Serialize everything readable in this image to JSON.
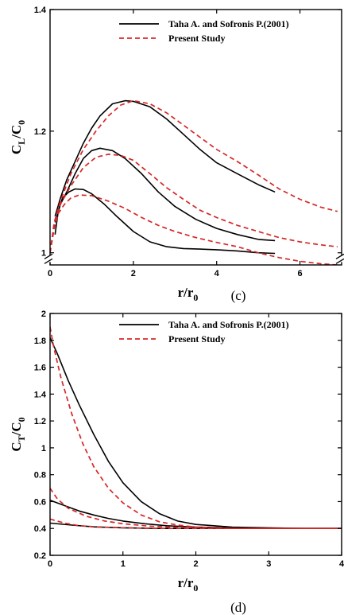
{
  "chart_data": [
    {
      "type": "line",
      "panel_label": "(c)",
      "xlabel_main": "r/r",
      "xlabel_sub": "0",
      "ylabel_main": "C",
      "ylabel_sub": "L",
      "ylabel_tail": "/C",
      "ylabel_tail_sub": "0",
      "xlim": [
        0,
        7
      ],
      "ylim": [
        0.98,
        1.4
      ],
      "axis_break_y": 0.99,
      "xticks": [
        0,
        2,
        4,
        6
      ],
      "yticks": [
        1,
        1.2,
        1.4
      ],
      "grid": false,
      "legend_position": "top-right",
      "legend": [
        {
          "label": "Taha A. and Sofronis P.(2001)",
          "style": "solid",
          "color": "#000000"
        },
        {
          "label": "Present Study",
          "style": "dashed",
          "color": "#d62728"
        }
      ],
      "series": [
        {
          "group": "Taha A. and Sofronis P.(2001)",
          "style": "solid",
          "color": "#000000",
          "x": [
            0.12,
            0.2,
            0.3,
            0.45,
            0.6,
            0.8,
            1.0,
            1.3,
            1.6,
            2.0,
            2.4,
            2.8,
            3.2,
            3.6,
            4.0,
            4.5,
            5.0,
            5.4
          ],
          "y": [
            1.03,
            1.07,
            1.09,
            1.1,
            1.105,
            1.104,
            1.097,
            1.08,
            1.06,
            1.035,
            1.018,
            1.01,
            1.007,
            1.006,
            1.005,
            1.003,
            1.0,
            0.999
          ]
        },
        {
          "group": "Taha A. and Sofronis P.(2001)",
          "style": "solid",
          "color": "#000000",
          "x": [
            0.12,
            0.25,
            0.4,
            0.6,
            0.8,
            1.0,
            1.2,
            1.5,
            1.8,
            2.2,
            2.6,
            3.0,
            3.5,
            4.0,
            4.5,
            5.0,
            5.4
          ],
          "y": [
            1.05,
            1.08,
            1.1,
            1.13,
            1.155,
            1.168,
            1.172,
            1.168,
            1.155,
            1.13,
            1.1,
            1.076,
            1.055,
            1.04,
            1.03,
            1.022,
            1.02
          ]
        },
        {
          "group": "Taha A. and Sofronis P.(2001)",
          "style": "solid",
          "color": "#000000",
          "x": [
            0.12,
            0.25,
            0.4,
            0.6,
            0.8,
            1.0,
            1.2,
            1.5,
            1.8,
            2.0,
            2.4,
            2.8,
            3.2,
            3.6,
            4.0,
            4.5,
            5.0,
            5.4
          ],
          "y": [
            1.06,
            1.09,
            1.12,
            1.15,
            1.18,
            1.205,
            1.225,
            1.245,
            1.25,
            1.249,
            1.24,
            1.22,
            1.195,
            1.17,
            1.148,
            1.13,
            1.112,
            1.1
          ]
        },
        {
          "group": "Present Study",
          "style": "dashed",
          "color": "#d62728",
          "x": [
            0.0,
            0.1,
            0.2,
            0.35,
            0.5,
            0.7,
            1.0,
            1.4,
            1.8,
            2.2,
            2.6,
            3.0,
            3.5,
            4.0,
            4.5,
            5.0,
            5.5,
            6.0,
            6.5,
            6.9
          ],
          "y": [
            1.0,
            1.04,
            1.065,
            1.08,
            1.09,
            1.095,
            1.094,
            1.085,
            1.073,
            1.058,
            1.045,
            1.035,
            1.025,
            1.017,
            1.01,
            1.0,
            0.992,
            0.986,
            0.982,
            0.98
          ]
        },
        {
          "group": "Present Study",
          "style": "dashed",
          "color": "#d62728",
          "x": [
            0.0,
            0.1,
            0.25,
            0.5,
            0.8,
            1.1,
            1.4,
            1.7,
            2.0,
            2.4,
            2.8,
            3.2,
            3.6,
            4.0,
            4.5,
            5.0,
            5.5,
            6.0,
            6.5,
            6.9
          ],
          "y": [
            1.0,
            1.045,
            1.08,
            1.11,
            1.14,
            1.157,
            1.162,
            1.16,
            1.152,
            1.13,
            1.107,
            1.088,
            1.07,
            1.058,
            1.045,
            1.035,
            1.025,
            1.018,
            1.013,
            1.01
          ]
        },
        {
          "group": "Present Study",
          "style": "dashed",
          "color": "#d62728",
          "x": [
            0.0,
            0.1,
            0.25,
            0.5,
            0.8,
            1.1,
            1.4,
            1.7,
            2.0,
            2.4,
            2.8,
            3.2,
            3.6,
            4.0,
            4.5,
            5.0,
            5.5,
            6.0,
            6.5,
            6.9
          ],
          "y": [
            1.0,
            1.05,
            1.085,
            1.13,
            1.17,
            1.2,
            1.225,
            1.243,
            1.25,
            1.245,
            1.23,
            1.21,
            1.19,
            1.17,
            1.15,
            1.128,
            1.105,
            1.088,
            1.075,
            1.068
          ]
        }
      ]
    },
    {
      "type": "line",
      "panel_label": "(d)",
      "xlabel_main": "r/r",
      "xlabel_sub": "0",
      "ylabel_main": "C",
      "ylabel_sub": "T",
      "ylabel_tail": "/C",
      "ylabel_tail_sub": "0",
      "xlim": [
        0,
        4
      ],
      "ylim": [
        0.2,
        2.0
      ],
      "xticks": [
        0,
        1,
        2,
        3,
        4
      ],
      "yticks": [
        0.2,
        0.4,
        0.6,
        0.8,
        1,
        1.2,
        1.4,
        1.6,
        1.8,
        2
      ],
      "grid": false,
      "legend_position": "top-right",
      "legend": [
        {
          "label": "Taha A. and Sofronis P.(2001)",
          "style": "solid",
          "color": "#000000"
        },
        {
          "label": "Present Study",
          "style": "dashed",
          "color": "#d62728"
        }
      ],
      "series": [
        {
          "group": "Taha A. and Sofronis P.(2001)",
          "style": "solid",
          "color": "#000000",
          "x": [
            0.0,
            0.1,
            0.25,
            0.4,
            0.6,
            0.8,
            1.0,
            1.25,
            1.5,
            1.75,
            2.0,
            2.5,
            3.0,
            3.5,
            4.0
          ],
          "y": [
            1.82,
            1.7,
            1.5,
            1.32,
            1.1,
            0.9,
            0.74,
            0.6,
            0.51,
            0.455,
            0.43,
            0.41,
            0.405,
            0.4,
            0.4
          ]
        },
        {
          "group": "Taha A. and Sofronis P.(2001)",
          "style": "solid",
          "color": "#000000",
          "x": [
            0.0,
            0.2,
            0.4,
            0.6,
            0.8,
            1.0,
            1.3,
            1.6,
            2.0,
            2.5,
            3.0,
            3.5,
            4.0
          ],
          "y": [
            0.61,
            0.57,
            0.53,
            0.5,
            0.475,
            0.455,
            0.435,
            0.42,
            0.41,
            0.405,
            0.4,
            0.4,
            0.4
          ]
        },
        {
          "group": "Taha A. and Sofronis P.(2001)",
          "style": "solid",
          "color": "#000000",
          "x": [
            0.0,
            0.3,
            0.6,
            1.0,
            1.5,
            2.0,
            2.5,
            3.0,
            3.5,
            4.0
          ],
          "y": [
            0.44,
            0.425,
            0.412,
            0.405,
            0.4,
            0.4,
            0.4,
            0.4,
            0.4,
            0.4
          ]
        },
        {
          "group": "Present Study",
          "style": "dashed",
          "color": "#d62728",
          "x": [
            0.0,
            0.05,
            0.15,
            0.3,
            0.45,
            0.6,
            0.8,
            1.0,
            1.25,
            1.5,
            1.75,
            2.0,
            2.5,
            3.0,
            3.5,
            4.0
          ],
          "y": [
            1.9,
            1.75,
            1.52,
            1.25,
            1.03,
            0.86,
            0.7,
            0.59,
            0.5,
            0.45,
            0.425,
            0.41,
            0.4,
            0.4,
            0.4,
            0.4
          ]
        },
        {
          "group": "Present Study",
          "style": "dashed",
          "color": "#d62728",
          "x": [
            0.0,
            0.1,
            0.25,
            0.5,
            0.75,
            1.0,
            1.3,
            1.6,
            2.0,
            2.5,
            3.0,
            3.5,
            4.0
          ],
          "y": [
            0.7,
            0.62,
            0.55,
            0.49,
            0.455,
            0.435,
            0.42,
            0.41,
            0.405,
            0.4,
            0.4,
            0.4,
            0.4
          ]
        },
        {
          "group": "Present Study",
          "style": "dashed",
          "color": "#d62728",
          "x": [
            0.0,
            0.2,
            0.4,
            0.7,
            1.0,
            1.5,
            2.0,
            2.5,
            3.0,
            3.5,
            4.0
          ],
          "y": [
            0.47,
            0.44,
            0.42,
            0.41,
            0.405,
            0.4,
            0.4,
            0.4,
            0.4,
            0.4,
            0.4
          ]
        }
      ]
    }
  ]
}
